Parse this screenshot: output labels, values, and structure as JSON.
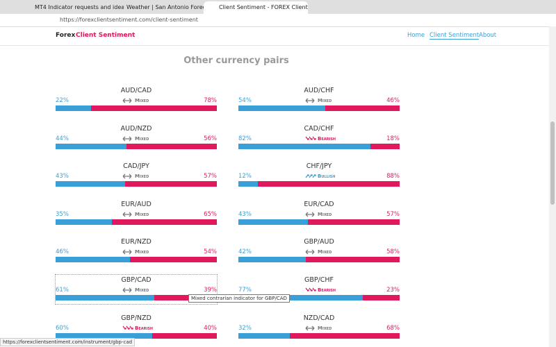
{
  "browser": {
    "tabs": [
      "MT4 Indicator requests and idea",
      "Weather | San Antonio Forecast",
      "Client Sentiment - FOREX Client"
    ],
    "url": "https://forexclientsentiment.com/client-sentiment",
    "status": "https://forexclientsentiment.com/instrument/gbp-cad"
  },
  "site": {
    "brand": [
      "Forex",
      "Client Sentiment"
    ],
    "nav": [
      "Home",
      "Client Sentiment",
      "About"
    ]
  },
  "section": {
    "title": "Other currency pairs",
    "pairs": [
      {
        "name": "AUD/CAD",
        "long": "22%",
        "short": "78%",
        "signal": "Mixed"
      },
      {
        "name": "AUD/CHF",
        "long": "54%",
        "short": "46%",
        "signal": "Mixed"
      },
      {
        "name": "AUD/NZD",
        "long": "44%",
        "short": "56%",
        "signal": "Mixed"
      },
      {
        "name": "CAD/CHF",
        "long": "82%",
        "short": "18%",
        "signal": "Bearish"
      },
      {
        "name": "CAD/JPY",
        "long": "43%",
        "short": "57%",
        "signal": "Mixed"
      },
      {
        "name": "CHF/JPY",
        "long": "12%",
        "short": "88%",
        "signal": "Bullish"
      },
      {
        "name": "EUR/AUD",
        "long": "35%",
        "short": "65%",
        "signal": "Mixed"
      },
      {
        "name": "EUR/CAD",
        "long": "43%",
        "short": "57%",
        "signal": "Mixed"
      },
      {
        "name": "EUR/NZD",
        "long": "46%",
        "short": "54%",
        "signal": "Mixed"
      },
      {
        "name": "GBP/AUD",
        "long": "42%",
        "short": "58%",
        "signal": "Mixed"
      },
      {
        "name": "GBP/CAD",
        "long": "61%",
        "short": "39%",
        "signal": "Mixed"
      },
      {
        "name": "GBP/CHF",
        "long": "77%",
        "short": "23%",
        "signal": "Bearish"
      },
      {
        "name": "GBP/NZD",
        "long": "60%",
        "short": "40%",
        "signal": "Bearish"
      },
      {
        "name": "NZD/CAD",
        "long": "32%",
        "short": "68%",
        "signal": "Mixed"
      }
    ],
    "tooltip": "Mixed contrarian indicator for GBP/CAD"
  }
}
